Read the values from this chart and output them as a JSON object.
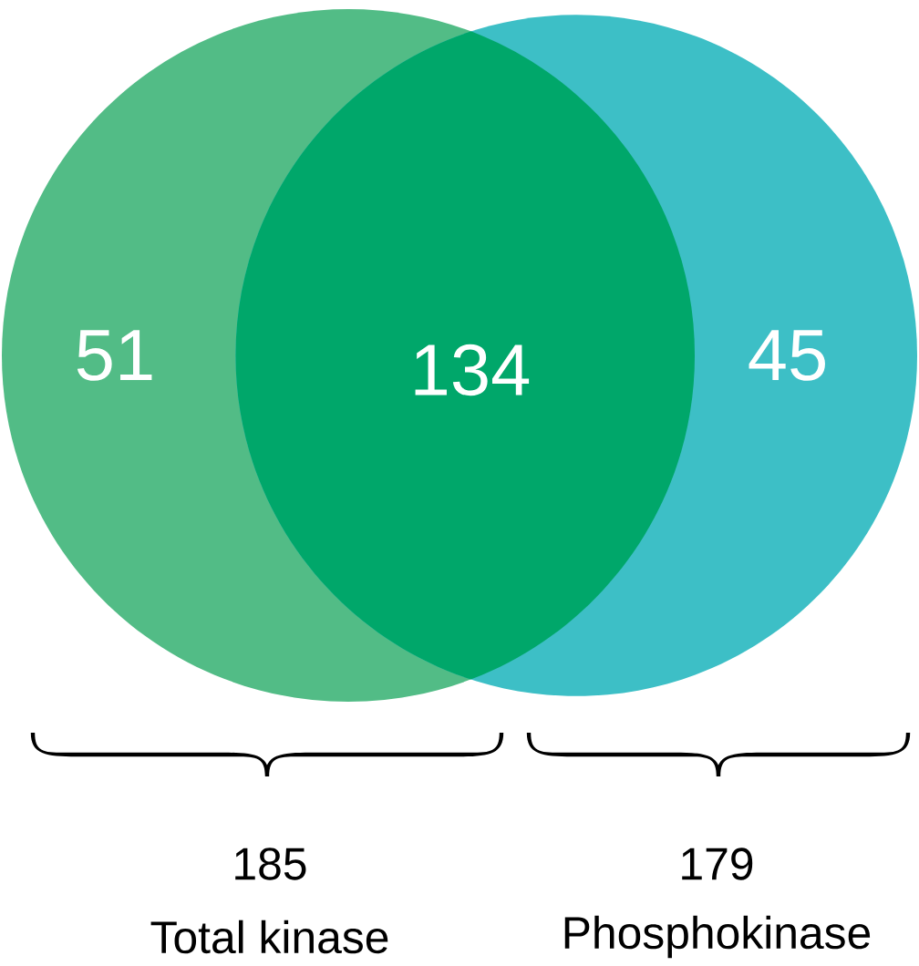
{
  "chart_data": {
    "type": "other",
    "categories": [
      null,
      null,
      null
    ],
    "values": [
      51,
      134,
      45
    ],
    "colors": [
      "#52bc86",
      "#00a76a",
      "#3dbfc6"
    ],
    "data_labels": true,
    "annotations": [
      "185",
      "Total kinase",
      "179",
      "Phosphokinase"
    ]
  }
}
